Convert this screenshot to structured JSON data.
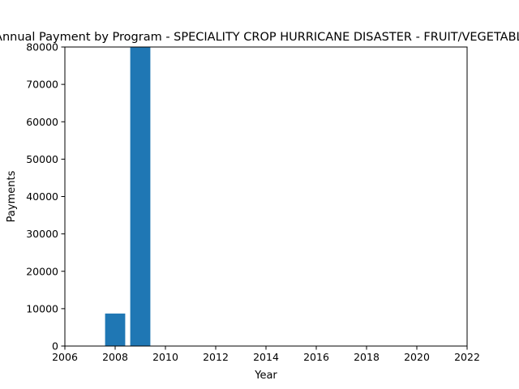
{
  "chart_data": {
    "type": "bar",
    "title": "Annual Payment by Program - SPECIALITY CROP HURRICANE DISASTER - FRUIT/VEGETABLES",
    "xlabel": "Year",
    "ylabel": "Payments",
    "x": [
      2008,
      2009
    ],
    "values": [
      8700,
      80000
    ],
    "xlim": [
      2006,
      2022
    ],
    "ylim": [
      0,
      80000
    ],
    "xticks": [
      2006,
      2008,
      2010,
      2012,
      2014,
      2016,
      2018,
      2020,
      2022
    ],
    "yticks": [
      0,
      10000,
      20000,
      30000,
      40000,
      50000,
      60000,
      70000,
      80000
    ],
    "bar_color": "#1f77b4",
    "grid": false,
    "legend": "none"
  }
}
